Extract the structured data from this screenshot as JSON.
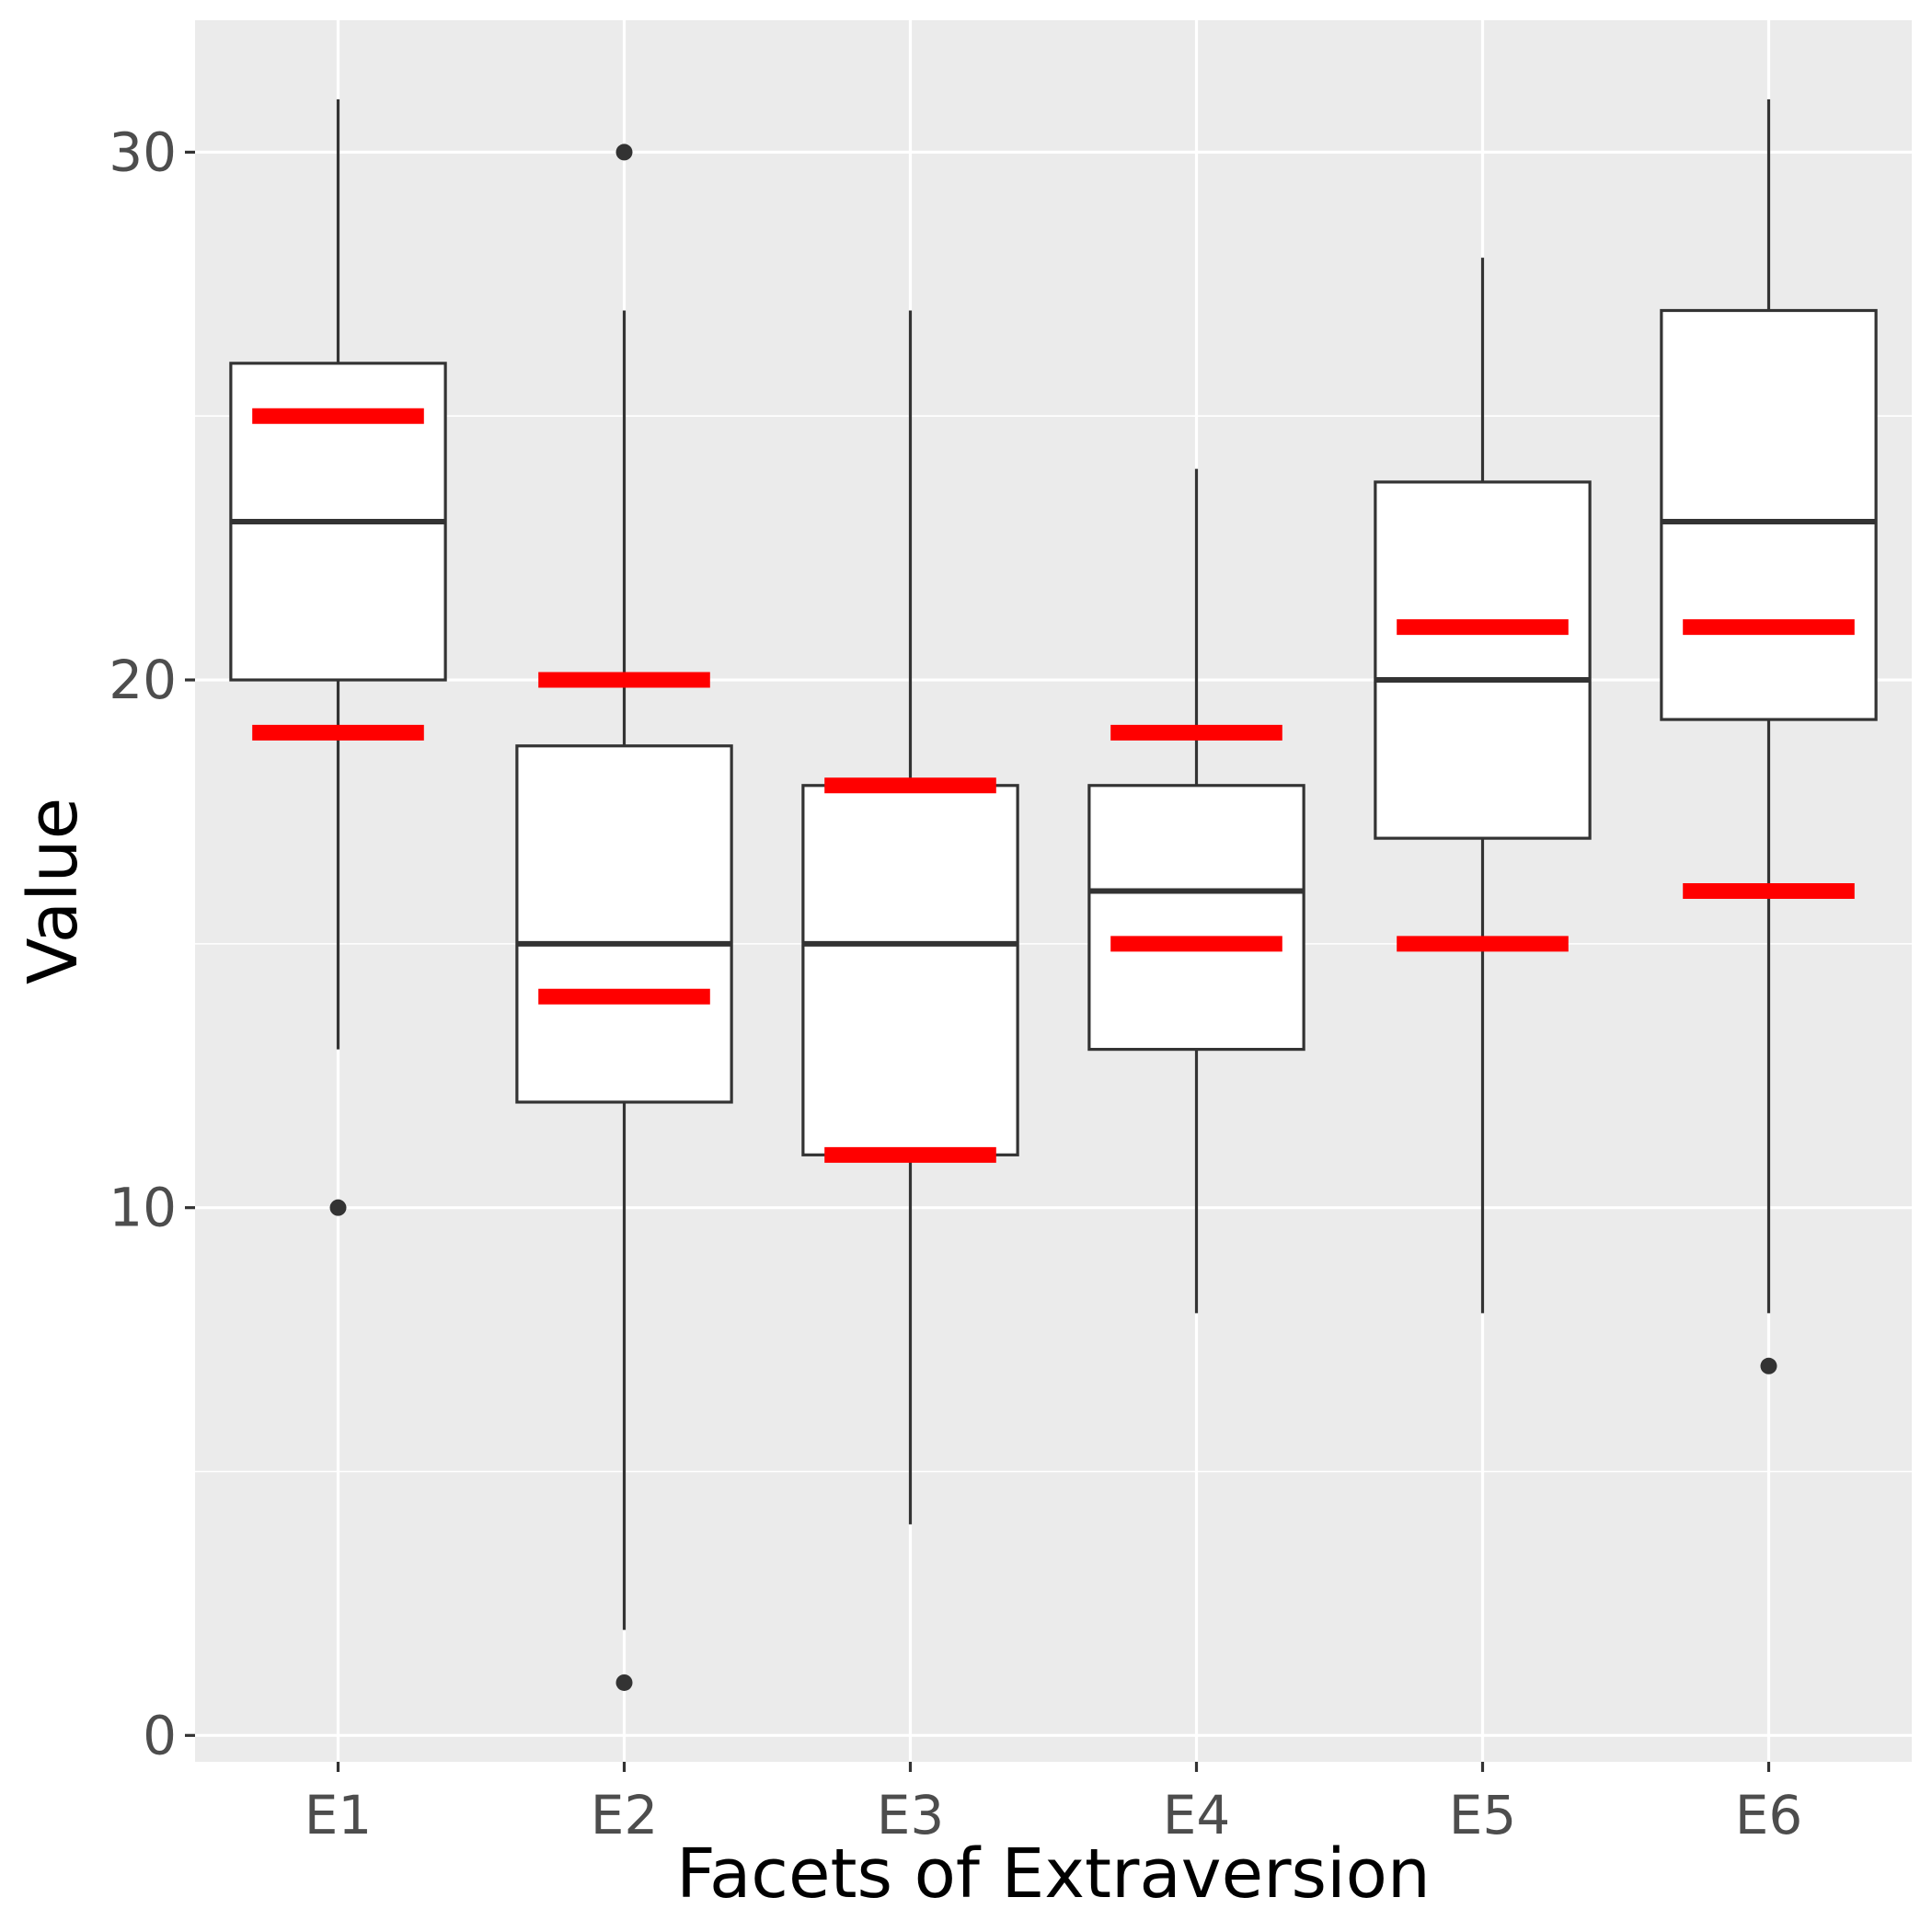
{
  "chart_data": {
    "type": "boxplot",
    "title": "",
    "xlabel": "Facets of Extraversion",
    "ylabel": "Value",
    "ylim": [
      -0.5,
      32.5
    ],
    "yticks": [
      0,
      10,
      20,
      30
    ],
    "grid": true,
    "categories": [
      "E1",
      "E2",
      "E3",
      "E4",
      "E5",
      "E6"
    ],
    "boxes": [
      {
        "category": "E1",
        "whisker_low": 13,
        "q1": 20,
        "median": 23,
        "q3": 26,
        "whisker_high": 31,
        "outliers": [
          10
        ]
      },
      {
        "category": "E2",
        "whisker_low": 2,
        "q1": 12,
        "median": 15,
        "q3": 18.75,
        "whisker_high": 27,
        "outliers": [
          30,
          1
        ]
      },
      {
        "category": "E3",
        "whisker_low": 4,
        "q1": 11,
        "median": 15,
        "q3": 18,
        "whisker_high": 27,
        "outliers": []
      },
      {
        "category": "E4",
        "whisker_low": 8,
        "q1": 13,
        "median": 16,
        "q3": 18,
        "whisker_high": 24,
        "outliers": []
      },
      {
        "category": "E5",
        "whisker_low": 8,
        "q1": 17,
        "median": 20,
        "q3": 23.75,
        "whisker_high": 28,
        "outliers": []
      },
      {
        "category": "E6",
        "whisker_low": 8,
        "q1": 19.25,
        "median": 23,
        "q3": 27,
        "whisker_high": 31,
        "outliers": [
          7
        ]
      }
    ],
    "reference_marks": [
      {
        "category": "E1",
        "values": [
          25,
          19
        ]
      },
      {
        "category": "E2",
        "values": [
          20,
          14
        ]
      },
      {
        "category": "E3",
        "values": [
          18,
          11
        ]
      },
      {
        "category": "E4",
        "values": [
          19,
          15
        ]
      },
      {
        "category": "E5",
        "values": [
          21,
          15
        ]
      },
      {
        "category": "E6",
        "values": [
          21,
          16
        ]
      }
    ],
    "colors": {
      "panel_background": "#ebebeb",
      "grid": "#ffffff",
      "box_fill": "#ffffff",
      "box_stroke": "#333333",
      "reference_marks": "#ff0000",
      "tick_text": "#4d4d4d",
      "axis_title": "#000000"
    }
  }
}
